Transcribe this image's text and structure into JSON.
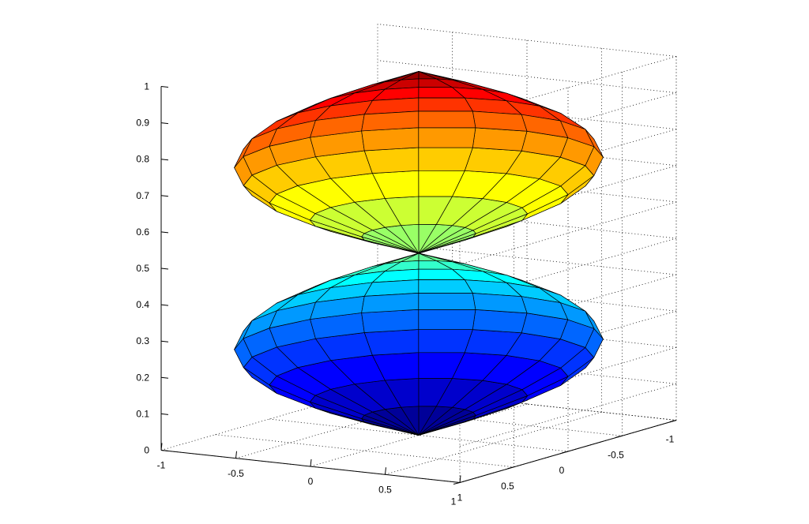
{
  "chart_data": {
    "type": "surface",
    "title": "",
    "xlabel": "",
    "ylabel": "",
    "zlabel": "",
    "xlim": [
      -1,
      1
    ],
    "ylim": [
      -1,
      1
    ],
    "zlim": [
      0,
      1
    ],
    "grid": true,
    "colormap": "jet",
    "x_ticks": [
      {
        "value": -1,
        "label": "-1"
      },
      {
        "value": -0.5,
        "label": "-0.5"
      },
      {
        "value": 0,
        "label": "0"
      },
      {
        "value": 0.5,
        "label": "0.5"
      },
      {
        "value": 1,
        "label": "1"
      }
    ],
    "y_ticks": [
      {
        "value": -1,
        "label": "-1"
      },
      {
        "value": -0.5,
        "label": "-0.5"
      },
      {
        "value": 0,
        "label": "0"
      },
      {
        "value": 0.5,
        "label": "0.5"
      },
      {
        "value": 1,
        "label": "1"
      }
    ],
    "z_ticks": [
      {
        "value": 0,
        "label": "0"
      },
      {
        "value": 0.1,
        "label": "0.1"
      },
      {
        "value": 0.2,
        "label": "0.2"
      },
      {
        "value": 0.3,
        "label": "0.3"
      },
      {
        "value": 0.4,
        "label": "0.4"
      },
      {
        "value": 0.5,
        "label": "0.5"
      },
      {
        "value": 0.6,
        "label": "0.6"
      },
      {
        "value": 0.7,
        "label": "0.7"
      },
      {
        "value": 0.8,
        "label": "0.8"
      },
      {
        "value": 0.9,
        "label": "0.9"
      },
      {
        "value": 1,
        "label": "1"
      }
    ],
    "surface": {
      "shape": "double cone-like surface of revolution",
      "radial_profile": {
        "z": [
          0,
          0.05,
          0.1,
          0.15,
          0.2,
          0.25,
          0.3,
          0.35,
          0.4,
          0.45,
          0.5,
          0.55,
          0.6,
          0.65,
          0.7,
          0.75,
          0.8,
          0.85,
          0.9,
          0.95,
          1
        ],
        "r": [
          0,
          0.31,
          0.59,
          0.81,
          0.95,
          1.0,
          0.95,
          0.81,
          0.59,
          0.31,
          0,
          0.31,
          0.59,
          0.81,
          0.95,
          1.0,
          0.95,
          0.81,
          0.59,
          0.31,
          0
        ]
      },
      "angular_divisions": 20
    }
  }
}
